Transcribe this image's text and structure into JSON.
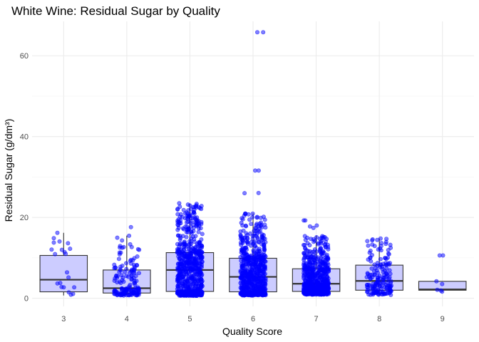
{
  "chart_data": {
    "type": "box-jitter",
    "title": "White Wine: Residual Sugar by Quality",
    "xlabel": "Quality Score",
    "ylabel": "Residual Sugar (g/dm³)",
    "categories": [
      "3",
      "4",
      "5",
      "6",
      "7",
      "8",
      "9"
    ],
    "ylim": [
      -2,
      68.5
    ],
    "y_ticks": [
      0,
      20,
      40,
      60
    ],
    "y_minor_ticks": [
      10,
      30,
      50
    ],
    "grid": true,
    "legend": "none",
    "box_fill": "#ccccff",
    "point_color": "#0000ff",
    "boxes": [
      {
        "category": "3",
        "q1": 1.6,
        "median": 4.6,
        "q3": 10.6,
        "whisker_low": 0.7,
        "whisker_high": 16.2,
        "n": 20,
        "max": 16.2
      },
      {
        "category": "4",
        "q1": 1.3,
        "median": 2.5,
        "q3": 7.0,
        "whisker_low": 0.7,
        "whisker_high": 15.5,
        "n": 163,
        "max": 17.6
      },
      {
        "category": "5",
        "q1": 1.7,
        "median": 7.0,
        "q3": 11.3,
        "whisker_low": 0.6,
        "whisker_high": 23.4,
        "n": 1457,
        "max": 23.5
      },
      {
        "category": "6",
        "q1": 1.6,
        "median": 5.3,
        "q3": 9.9,
        "whisker_low": 0.7,
        "whisker_high": 21.0,
        "n": 2198,
        "max": 65.8,
        "outliers": [
          26.0,
          26.05,
          31.6,
          31.6,
          65.8
        ]
      },
      {
        "category": "7",
        "q1": 1.7,
        "median": 3.6,
        "q3": 7.3,
        "whisker_low": 0.9,
        "whisker_high": 15.5,
        "n": 880,
        "max": 19.25,
        "outliers": [
          17.4,
          17.8,
          18.0,
          19.25
        ]
      },
      {
        "category": "8",
        "q1": 2.0,
        "median": 4.3,
        "q3": 8.2,
        "whisker_low": 0.8,
        "whisker_high": 14.8,
        "n": 175,
        "max": 14.8
      },
      {
        "category": "9",
        "q1": 2.0,
        "median": 2.2,
        "q3": 4.2,
        "whisker_low": 1.6,
        "whisker_high": 4.2,
        "n": 5,
        "max": 10.6,
        "outliers": [
          10.6
        ]
      }
    ]
  }
}
